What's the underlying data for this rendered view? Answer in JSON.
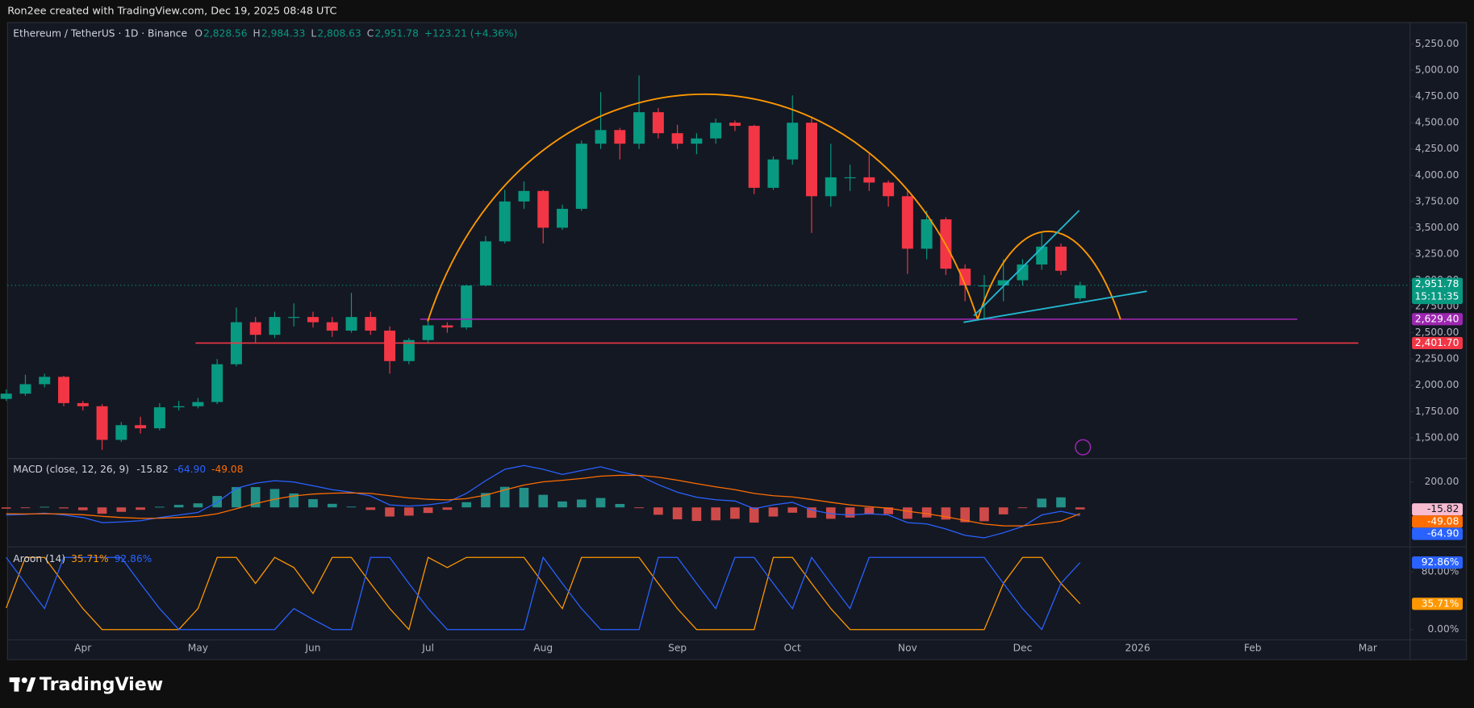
{
  "header": "Ron2ee created with TradingView.com, Dec 19, 2025 08:48 UTC",
  "footer": "TradingView",
  "chart_data": [
    {
      "type": "candlestick",
      "title": "Ethereum / TetherUS · 1D · Binance",
      "ohlc_legend": [
        {
          "label": "O",
          "value": "2,828.56"
        },
        {
          "label": "H",
          "value": "2,984.33"
        },
        {
          "label": "L",
          "value": "2,808.63"
        },
        {
          "label": "C",
          "value": "2,951.78"
        }
      ],
      "change": "+123.21 (+4.36%)",
      "categories": [
        null,
        null,
        null,
        null,
        "Apr",
        null,
        null,
        null,
        null,
        null,
        "May",
        null,
        null,
        null,
        null,
        null,
        "Jun",
        null,
        null,
        null,
        null,
        null,
        "Jul",
        null,
        null,
        null,
        null,
        null,
        "Aug",
        null,
        null,
        null,
        null,
        null,
        null,
        "Sep",
        null,
        null,
        null,
        null,
        null,
        "Oct",
        null,
        null,
        null,
        null,
        null,
        "Nov",
        null,
        null,
        null,
        null,
        null,
        "Dec",
        null,
        null,
        null,
        null,
        null,
        "2026",
        null,
        null,
        null,
        null,
        null,
        "Feb",
        null,
        null,
        null,
        null,
        null,
        "Mar",
        null
      ],
      "candles": {
        "open": [
          1870,
          1920,
          2010,
          2080,
          1830,
          1800,
          1480,
          1620,
          1590,
          1790,
          1800,
          1840,
          2200,
          2600,
          2480,
          2650,
          2650,
          2600,
          2520,
          2650,
          2520,
          2230,
          2430,
          2570,
          2550,
          2950,
          3370,
          3750,
          3850,
          3500,
          3680,
          4300,
          4430,
          4300,
          4600,
          4400,
          4300,
          4350,
          4500,
          4470,
          3880,
          4150,
          4500,
          3800,
          3980,
          3980,
          3930,
          3800,
          3300,
          3580,
          3110,
          2950,
          2950,
          3000,
          3150,
          3320,
          2828.56,
          null,
          null,
          null,
          null,
          null,
          null,
          null,
          null,
          null,
          null,
          null,
          null,
          null,
          null,
          null,
          null
        ],
        "high": [
          1960,
          2100,
          2110,
          2090,
          1850,
          1820,
          1650,
          1700,
          1830,
          1850,
          1880,
          2250,
          2740,
          2650,
          2700,
          2780,
          2700,
          2650,
          2880,
          2700,
          2560,
          2450,
          2620,
          2600,
          2960,
          3420,
          3860,
          3940,
          3860,
          3720,
          4330,
          4790,
          4450,
          4950,
          4640,
          4480,
          4400,
          4540,
          4520,
          4480,
          4180,
          4760,
          4560,
          4300,
          4100,
          4200,
          3950,
          3860,
          3660,
          3600,
          3150,
          3050,
          3200,
          3200,
          3450,
          3350,
          2984.33,
          null,
          null,
          null,
          null,
          null,
          null,
          null,
          null,
          null,
          null,
          null,
          null,
          null,
          null,
          null,
          null
        ],
        "low": [
          1850,
          1900,
          1980,
          1800,
          1760,
          1385,
          1460,
          1540,
          1570,
          1760,
          1780,
          1820,
          2180,
          2400,
          2450,
          2560,
          2550,
          2460,
          2500,
          2480,
          2110,
          2200,
          2400,
          2500,
          2530,
          2940,
          3350,
          3680,
          3350,
          3480,
          3660,
          4250,
          4150,
          4250,
          4350,
          4250,
          4200,
          4300,
          4420,
          3820,
          3860,
          4100,
          3450,
          3700,
          3850,
          3850,
          3700,
          3060,
          3200,
          3050,
          2800,
          2620,
          2800,
          2950,
          3100,
          3050,
          2808.63,
          null,
          null,
          null,
          null,
          null,
          null,
          null,
          null,
          null,
          null,
          null,
          null,
          null,
          null,
          null,
          null
        ],
        "close": [
          1920,
          2010,
          2080,
          1830,
          1800,
          1480,
          1620,
          1590,
          1790,
          1800,
          1840,
          2200,
          2600,
          2480,
          2650,
          2650,
          2600,
          2520,
          2650,
          2520,
          2230,
          2430,
          2570,
          2550,
          2950,
          3370,
          3750,
          3850,
          3500,
          3680,
          4300,
          4430,
          4300,
          4600,
          4400,
          4300,
          4350,
          4500,
          4470,
          3880,
          4150,
          4500,
          3800,
          3980,
          3980,
          3930,
          3800,
          3300,
          3580,
          3110,
          2950,
          2950,
          3000,
          3150,
          3320,
          3090,
          2951.78,
          null,
          null,
          null,
          null,
          null,
          null,
          null,
          null,
          null,
          null,
          null,
          null,
          null,
          null,
          null,
          null
        ]
      },
      "up_color": "#089981",
      "down_color": "#f23645",
      "ylim": [
        1320,
        5400
      ],
      "yticks": [
        {
          "value": 1500,
          "label": "1,500.00"
        },
        {
          "value": 1750,
          "label": "1,750.00"
        },
        {
          "value": 2000,
          "label": "2,000.00"
        },
        {
          "value": 2250,
          "label": "2,250.00"
        },
        {
          "value": 2500,
          "label": "2,500.00"
        },
        {
          "value": 2750,
          "label": "2,750.00"
        },
        {
          "value": 3000,
          "label": "3,000.00"
        },
        {
          "value": 3250,
          "label": "3,250.00"
        },
        {
          "value": 3500,
          "label": "3,500.00"
        },
        {
          "value": 3750,
          "label": "3,750.00"
        },
        {
          "value": 4000,
          "label": "4,000.00"
        },
        {
          "value": 4250,
          "label": "4,250.00"
        },
        {
          "value": 4500,
          "label": "4,500.00"
        },
        {
          "value": 4750,
          "label": "4,750.00"
        },
        {
          "value": 5000,
          "label": "5,000.00"
        },
        {
          "value": 5250,
          "label": "5,250.00"
        }
      ],
      "grid": false,
      "levels": [
        {
          "value": 2629.4,
          "label": "2,629.40",
          "color": "#9c27b0"
        },
        {
          "value": 2401.7,
          "label": "2,401.70",
          "color": "#f23645"
        }
      ],
      "last_price": {
        "value": 2951.78,
        "label": "2,951.78",
        "countdown": "15:11:35",
        "color": "#089981"
      }
    },
    {
      "type": "macd",
      "title": "MACD (close, 12, 26, 9)",
      "histogram": {
        "values": [
          -10,
          -3,
          5,
          -8,
          -22,
          -50,
          -35,
          -19,
          5,
          20,
          32,
          90,
          160,
          160,
          145,
          110,
          65,
          28,
          6,
          -20,
          -72,
          -65,
          -44,
          -19,
          41,
          113,
          162,
          154,
          99,
          47,
          62,
          74,
          27,
          -2,
          -58,
          -94,
          -107,
          -102,
          -90,
          -120,
          -72,
          -42,
          -82,
          -90,
          -80,
          -56,
          -53,
          -90,
          -80,
          -96,
          -117,
          -109,
          -55,
          -4,
          69,
          79,
          -15.82,
          null,
          null,
          null,
          null,
          null,
          null,
          null,
          null,
          null,
          null,
          null,
          null,
          null,
          null,
          null,
          null
        ],
        "up_color": "#26a69a",
        "down_color": "#ef5350",
        "legend_value": "-15.82",
        "label_color": "#f8bbd0"
      },
      "series": [
        {
          "color": "#2962ff",
          "legend_value": "-64.90",
          "values": [
            -60,
            -55,
            -45,
            -60,
            -80,
            -120,
            -115,
            -105,
            -80,
            -60,
            -40,
            40,
            150,
            190,
            210,
            200,
            170,
            140,
            120,
            90,
            20,
            10,
            20,
            40,
            110,
            210,
            300,
            330,
            300,
            260,
            290,
            320,
            280,
            250,
            180,
            120,
            80,
            60,
            50,
            -10,
            20,
            40,
            -20,
            -50,
            -60,
            -50,
            -60,
            -120,
            -130,
            -170,
            -220,
            -240,
            -200,
            -150,
            -60,
            -30,
            -64.9,
            null,
            null,
            null,
            null,
            null,
            null,
            null,
            null,
            null,
            null,
            null,
            null,
            null,
            null,
            null,
            null
          ]
        },
        {
          "color": "#ff6d00",
          "legend_value": "-49.08",
          "values": [
            -50,
            -52,
            -50,
            -52,
            -58,
            -70,
            -80,
            -86,
            -85,
            -80,
            -72,
            -50,
            -10,
            30,
            65,
            90,
            105,
            112,
            114,
            110,
            92,
            75,
            64,
            59,
            69,
            97,
            138,
            176,
            201,
            213,
            228,
            246,
            253,
            252,
            238,
            214,
            187,
            162,
            140,
            110,
            92,
            82,
            62,
            40,
            20,
            6,
            -7,
            -30,
            -50,
            -74,
            -103,
            -131,
            -145,
            -146,
            -129,
            -109,
            -49.08,
            null,
            null,
            null,
            null,
            null,
            null,
            null,
            null,
            null,
            null,
            null,
            null,
            null,
            null,
            null,
            null
          ]
        }
      ],
      "ylim": [
        -296,
        370
      ],
      "yticks": [
        {
          "value": 200,
          "label": "200.00"
        }
      ]
    },
    {
      "type": "line",
      "title": "Aroon (14)",
      "series": [
        {
          "color": "#ff9800",
          "legend_value": "35.71%",
          "values": [
            30,
            100,
            100,
            64,
            29,
            0,
            0,
            0,
            0,
            0,
            29,
            100,
            100,
            64,
            100,
            86,
            50,
            100,
            100,
            64,
            29,
            0,
            100,
            86,
            100,
            100,
            100,
            100,
            64,
            29,
            100,
            100,
            100,
            100,
            64,
            29,
            0,
            0,
            0,
            0,
            100,
            100,
            64,
            29,
            0,
            0,
            0,
            0,
            0,
            0,
            0,
            0,
            64,
            100,
            100,
            64,
            35.71,
            null,
            null,
            null,
            null,
            null,
            null,
            null,
            null,
            null,
            null,
            null,
            null,
            null,
            null,
            null,
            null
          ]
        },
        {
          "color": "#2962ff",
          "legend_value": "92.86%",
          "values": [
            100,
            64,
            29,
            100,
            100,
            100,
            100,
            64,
            29,
            0,
            0,
            0,
            0,
            0,
            0,
            29,
            14,
            0,
            0,
            100,
            100,
            64,
            29,
            0,
            0,
            0,
            0,
            0,
            100,
            64,
            29,
            0,
            0,
            0,
            100,
            100,
            64,
            29,
            100,
            100,
            64,
            29,
            100,
            64,
            29,
            100,
            100,
            100,
            100,
            100,
            100,
            100,
            64,
            29,
            0,
            64,
            92.86,
            null,
            null,
            null,
            null,
            null,
            null,
            null,
            null,
            null,
            null,
            null,
            null,
            null,
            null,
            null,
            null
          ]
        }
      ],
      "ylim": [
        -13,
        112
      ],
      "yticks": [
        {
          "value": 0,
          "label": "0.00%"
        },
        {
          "value": 80,
          "label": "80.00%"
        }
      ]
    }
  ]
}
